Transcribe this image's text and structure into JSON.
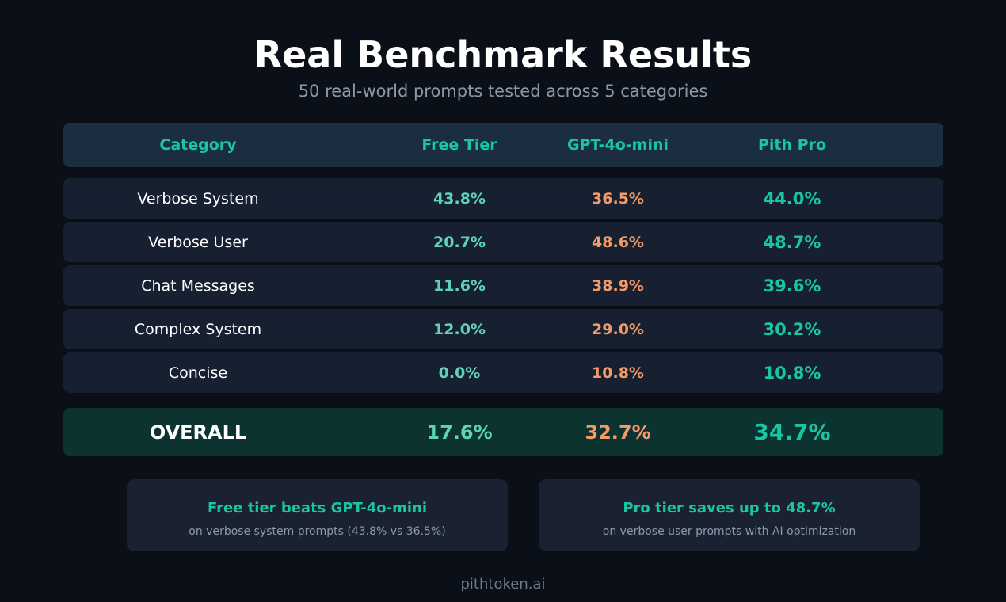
{
  "header": {
    "title": "Real Benchmark Results",
    "subtitle": "50 real-world prompts tested across 5 categories"
  },
  "chart_data": {
    "type": "table",
    "title": "Real Benchmark Results",
    "subtitle": "50 real-world prompts tested across 5 categories",
    "columns": [
      "Category",
      "Free Tier",
      "GPT-4o-mini",
      "Pith Pro"
    ],
    "rows": [
      {
        "category": "Verbose System",
        "free": "43.8%",
        "gpt": "36.5%",
        "pro": "44.0%"
      },
      {
        "category": "Verbose User",
        "free": "20.7%",
        "gpt": "48.6%",
        "pro": "48.7%"
      },
      {
        "category": "Chat Messages",
        "free": "11.6%",
        "gpt": "38.9%",
        "pro": "39.6%"
      },
      {
        "category": "Complex System",
        "free": "12.0%",
        "gpt": "29.0%",
        "pro": "30.2%"
      },
      {
        "category": "Concise",
        "free": "0.0%",
        "gpt": "10.8%",
        "pro": "10.8%"
      }
    ],
    "overall": {
      "category": "OVERALL",
      "free": "17.6%",
      "gpt": "32.7%",
      "pro": "34.7%"
    }
  },
  "cards": [
    {
      "title": "Free tier beats GPT-4o-mini",
      "subtitle": "on verbose system prompts (43.8% vs 36.5%)"
    },
    {
      "title": "Pro tier saves up to 48.7%",
      "subtitle": "on verbose user prompts with AI optimization"
    }
  ],
  "footer": {
    "text": "pithtoken.ai"
  },
  "colors": {
    "background": "#0b0f18",
    "accent": "#19c6a2",
    "free": "#5fd3b6",
    "gpt": "#f39a6a",
    "header_bg": "#1b2e40",
    "row_bg": "#172030",
    "overall_bg": "#0d3330"
  }
}
